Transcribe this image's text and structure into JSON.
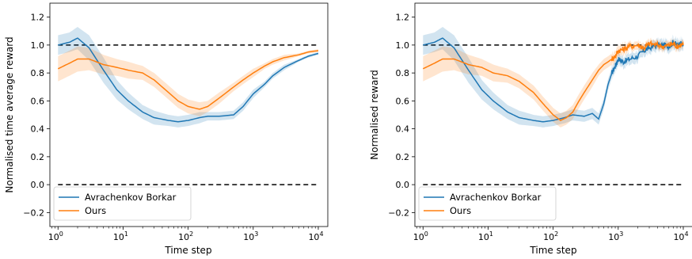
{
  "colors": {
    "avrachenkov": "#1f77b4",
    "ours": "#ff7f0e",
    "reference": "#000000"
  },
  "chart_data": [
    {
      "type": "line",
      "xscale": "log",
      "xlim": [
        0.75,
        14000
      ],
      "ylim": [
        -0.3,
        1.3
      ],
      "xlabel": "Time step",
      "ylabel": "Normalised time average reward",
      "xticks": [
        1,
        10,
        100,
        1000,
        10000
      ],
      "xtick_labels": [
        {
          "base": "10",
          "exp": "0"
        },
        {
          "base": "10",
          "exp": "1"
        },
        {
          "base": "10",
          "exp": "2"
        },
        {
          "base": "10",
          "exp": "3"
        },
        {
          "base": "10",
          "exp": "4"
        }
      ],
      "yticks": [
        "−0.2",
        "0.0",
        "0.2",
        "0.4",
        "0.6",
        "0.8",
        "1.0",
        "1.2"
      ],
      "ytick_values": [
        -0.2,
        0.0,
        0.2,
        0.4,
        0.6,
        0.8,
        1.0,
        1.2
      ],
      "grid": false,
      "legend_position": "lower-left",
      "reference_lines": [
        1.0,
        0.0
      ],
      "series": [
        {
          "name": "Avrachenkov Borkar",
          "color": "#1f77b4",
          "x": [
            1,
            1.5,
            2,
            3,
            5,
            8,
            12,
            20,
            30,
            50,
            70,
            100,
            150,
            200,
            300,
            500,
            700,
            1000,
            1500,
            2000,
            3000,
            5000,
            7000,
            10000
          ],
          "y": [
            1.0,
            1.02,
            1.05,
            0.98,
            0.82,
            0.68,
            0.6,
            0.52,
            0.48,
            0.46,
            0.45,
            0.46,
            0.48,
            0.49,
            0.49,
            0.5,
            0.56,
            0.65,
            0.72,
            0.78,
            0.84,
            0.89,
            0.92,
            0.94
          ],
          "band": [
            0.07,
            0.07,
            0.08,
            0.09,
            0.09,
            0.07,
            0.06,
            0.05,
            0.05,
            0.04,
            0.04,
            0.04,
            0.04,
            0.03,
            0.03,
            0.03,
            0.03,
            0.03,
            0.02,
            0.02,
            0.02,
            0.01,
            0.01,
            0.01
          ]
        },
        {
          "name": "Ours",
          "color": "#ff7f0e",
          "x": [
            1,
            1.5,
            2,
            3,
            5,
            8,
            12,
            20,
            30,
            50,
            70,
            100,
            150,
            200,
            300,
            500,
            700,
            1000,
            1500,
            2000,
            3000,
            5000,
            7000,
            10000
          ],
          "y": [
            0.83,
            0.87,
            0.9,
            0.9,
            0.86,
            0.84,
            0.82,
            0.8,
            0.75,
            0.66,
            0.6,
            0.56,
            0.54,
            0.56,
            0.62,
            0.7,
            0.75,
            0.8,
            0.85,
            0.88,
            0.91,
            0.93,
            0.95,
            0.96
          ],
          "band": [
            0.09,
            0.09,
            0.09,
            0.08,
            0.07,
            0.06,
            0.06,
            0.05,
            0.05,
            0.05,
            0.05,
            0.05,
            0.05,
            0.04,
            0.04,
            0.03,
            0.03,
            0.03,
            0.02,
            0.02,
            0.02,
            0.01,
            0.01,
            0.01
          ]
        }
      ]
    },
    {
      "type": "line",
      "xscale": "log",
      "xlim": [
        0.75,
        14000
      ],
      "ylim": [
        -0.3,
        1.3
      ],
      "xlabel": "Time step",
      "ylabel": "Normalised reward",
      "xticks": [
        1,
        10,
        100,
        1000,
        10000
      ],
      "xtick_labels": [
        {
          "base": "10",
          "exp": "0"
        },
        {
          "base": "10",
          "exp": "1"
        },
        {
          "base": "10",
          "exp": "2"
        },
        {
          "base": "10",
          "exp": "3"
        },
        {
          "base": "10",
          "exp": "4"
        }
      ],
      "yticks": [
        "−0.2",
        "0.0",
        "0.2",
        "0.4",
        "0.6",
        "0.8",
        "1.0",
        "1.2"
      ],
      "ytick_values": [
        -0.2,
        0.0,
        0.2,
        0.4,
        0.6,
        0.8,
        1.0,
        1.2
      ],
      "grid": false,
      "legend_position": "lower-left",
      "reference_lines": [
        1.0,
        0.0
      ],
      "series": [
        {
          "name": "Avrachenkov Borkar",
          "color": "#1f77b4",
          "x": [
            1,
            1.5,
            2,
            3,
            5,
            8,
            12,
            20,
            30,
            50,
            70,
            100,
            150,
            200,
            300,
            400,
            500,
            600,
            700,
            800,
            900,
            1000,
            1200,
            1500,
            2000,
            2500,
            3000,
            4000,
            5000,
            6000,
            7000,
            8000,
            9000,
            10000
          ],
          "y": [
            1.0,
            1.02,
            1.05,
            0.98,
            0.82,
            0.68,
            0.6,
            0.52,
            0.48,
            0.46,
            0.45,
            0.46,
            0.48,
            0.5,
            0.49,
            0.51,
            0.47,
            0.58,
            0.72,
            0.8,
            0.85,
            0.9,
            0.88,
            0.9,
            0.92,
            0.96,
            0.98,
            1.0,
            1.0,
            0.99,
            1.02,
            1.0,
            1.01,
            1.0
          ],
          "band": [
            0.07,
            0.07,
            0.08,
            0.09,
            0.09,
            0.07,
            0.06,
            0.05,
            0.05,
            0.04,
            0.04,
            0.04,
            0.04,
            0.04,
            0.04,
            0.04,
            0.04,
            0.04,
            0.04,
            0.04,
            0.04,
            0.04,
            0.04,
            0.04,
            0.04,
            0.04,
            0.04,
            0.04,
            0.04,
            0.04,
            0.04,
            0.04,
            0.04,
            0.04
          ]
        },
        {
          "name": "Ours",
          "color": "#ff7f0e",
          "x": [
            1,
            1.5,
            2,
            3,
            5,
            8,
            12,
            20,
            30,
            50,
            70,
            100,
            130,
            160,
            200,
            250,
            300,
            400,
            500,
            600,
            700,
            800,
            900,
            1000,
            1200,
            1500,
            2000,
            2500,
            3000,
            4000,
            5000,
            6000,
            7000,
            8000,
            9000,
            10000
          ],
          "y": [
            0.83,
            0.87,
            0.9,
            0.9,
            0.86,
            0.84,
            0.8,
            0.78,
            0.74,
            0.66,
            0.58,
            0.5,
            0.46,
            0.48,
            0.52,
            0.6,
            0.66,
            0.75,
            0.82,
            0.86,
            0.88,
            0.9,
            0.92,
            0.96,
            0.97,
            0.99,
            1.0,
            0.98,
            1.01,
            1.0,
            0.99,
            1.0,
            1.01,
            0.99,
            1.0,
            1.0
          ],
          "band": [
            0.09,
            0.09,
            0.09,
            0.08,
            0.07,
            0.06,
            0.06,
            0.05,
            0.05,
            0.05,
            0.05,
            0.05,
            0.05,
            0.05,
            0.05,
            0.05,
            0.05,
            0.05,
            0.04,
            0.04,
            0.04,
            0.04,
            0.04,
            0.04,
            0.04,
            0.03,
            0.03,
            0.03,
            0.03,
            0.03,
            0.03,
            0.03,
            0.03,
            0.03,
            0.03,
            0.03
          ]
        }
      ]
    }
  ]
}
